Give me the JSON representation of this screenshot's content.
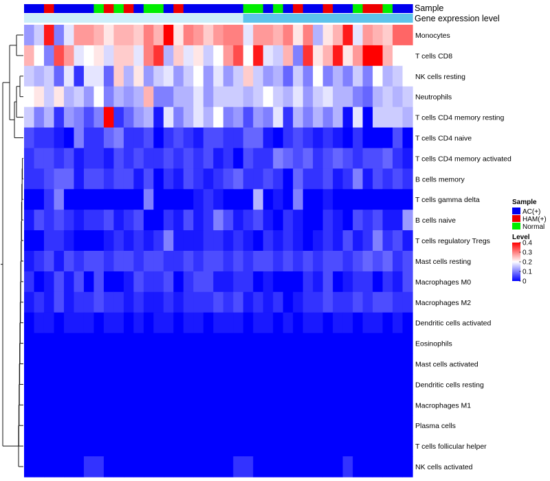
{
  "chart_data": {
    "type": "heatmap",
    "title": "",
    "annotations": [
      {
        "name": "Sample"
      },
      {
        "name": "Gene expression level"
      }
    ],
    "sample_groups": [
      "AC(+)",
      "AC(+)",
      "HAM(+)",
      "AC(+)",
      "AC(+)",
      "AC(+)",
      "AC(+)",
      "Normal",
      "HAM(+)",
      "Normal",
      "HAM(+)",
      "AC(+)",
      "Normal",
      "Normal",
      "AC(+)",
      "HAM(+)",
      "AC(+)",
      "AC(+)",
      "AC(+)",
      "AC(+)",
      "AC(+)",
      "AC(+)",
      "Normal",
      "Normal",
      "AC(+)",
      "Normal",
      "AC(+)",
      "HAM(+)",
      "AC(+)",
      "AC(+)",
      "HAM(+)",
      "AC(+)",
      "AC(+)",
      "Normal",
      "HAM(+)",
      "HAM(+)",
      "Normal",
      "AC(+)",
      "AC(+)"
    ],
    "expression_level": [
      "light",
      "light",
      "light",
      "light",
      "light",
      "light",
      "light",
      "light",
      "light",
      "light",
      "light",
      "light",
      "light",
      "light",
      "light",
      "light",
      "light",
      "light",
      "light",
      "light",
      "light",
      "light",
      "mid",
      "mid",
      "mid",
      "mid",
      "mid",
      "mid",
      "mid",
      "mid",
      "mid",
      "mid",
      "mid",
      "mid",
      "mid",
      "mid",
      "mid",
      "mid",
      "mid"
    ],
    "rows": [
      "Monocytes",
      "T cells CD8",
      "NK cells resting",
      "Neutrophils",
      "T cells CD4 memory resting",
      "T cells CD4 naive",
      "T cells CD4 memory activated",
      "B cells memory",
      "T cells gamma delta",
      "B cells naive",
      "T cells regulatory  Tregs",
      "Mast cells resting",
      "Macrophages M0",
      "Macrophages M2",
      "Dendritic cells activated",
      "Eosinophils",
      "Mast cells activated",
      "Dendritic cells resting",
      "Macrophages M1",
      "Plasma cells",
      "T cells follicular helper",
      "NK cells activated"
    ],
    "n_columns": 39,
    "values": [
      [
        0.12,
        0.16,
        0.38,
        0.1,
        0.18,
        0.28,
        0.28,
        0.26,
        0.22,
        0.26,
        0.26,
        0.24,
        0.3,
        0.26,
        0.4,
        0.22,
        0.3,
        0.28,
        0.24,
        0.28,
        0.3,
        0.3,
        0.18,
        0.28,
        0.28,
        0.26,
        0.3,
        0.22,
        0.3,
        0.14,
        0.22,
        0.26,
        0.38,
        0.18,
        0.28,
        0.26,
        0.24,
        0.32,
        0.32
      ],
      [
        0.26,
        0.2,
        0.1,
        0.34,
        0.28,
        0.18,
        0.2,
        0.22,
        0.17,
        0.24,
        0.24,
        0.18,
        0.3,
        0.36,
        0.14,
        0.24,
        0.18,
        0.22,
        0.16,
        0.2,
        0.28,
        0.34,
        0.2,
        0.38,
        0.18,
        0.16,
        0.26,
        0.1,
        0.36,
        0.22,
        0.26,
        0.38,
        0.22,
        0.28,
        0.4,
        0.4,
        0.26,
        0.2,
        0.2
      ],
      [
        0.16,
        0.14,
        0.16,
        0.08,
        0.18,
        0.04,
        0.18,
        0.18,
        0.08,
        0.24,
        0.14,
        0.22,
        0.12,
        0.16,
        0.18,
        0.12,
        0.16,
        0.2,
        0.12,
        0.18,
        0.12,
        0.16,
        0.24,
        0.16,
        0.12,
        0.14,
        0.08,
        0.16,
        0.1,
        0.2,
        0.1,
        0.14,
        0.1,
        0.16,
        0.1,
        0.2,
        0.14,
        0.16,
        0.2
      ],
      [
        0.2,
        0.22,
        0.16,
        0.22,
        0.14,
        0.16,
        0.12,
        0.2,
        0.1,
        0.14,
        0.12,
        0.14,
        0.26,
        0.1,
        0.1,
        0.14,
        0.14,
        0.18,
        0.12,
        0.16,
        0.16,
        0.16,
        0.14,
        0.16,
        0.2,
        0.16,
        0.14,
        0.18,
        0.12,
        0.16,
        0.18,
        0.14,
        0.14,
        0.1,
        0.08,
        0.14,
        0.16,
        0.14,
        0.16
      ],
      [
        0.16,
        0.1,
        0.14,
        0.04,
        0.12,
        0.1,
        0.06,
        0.1,
        0.4,
        0.04,
        0.08,
        0.12,
        0.14,
        0.02,
        0.18,
        0.1,
        0.14,
        0.18,
        0.14,
        0.2,
        0.1,
        0.12,
        0.06,
        0.12,
        0.1,
        0.18,
        0.04,
        0.14,
        0.1,
        0.14,
        0.1,
        0.14,
        0.01,
        0.18,
        0.0,
        0.16,
        0.16,
        0.16,
        0.14
      ],
      [
        0.06,
        0.04,
        0.04,
        0.02,
        0.0,
        0.1,
        0.04,
        0.04,
        0.08,
        0.1,
        0.04,
        0.04,
        0.06,
        0.0,
        0.04,
        0.06,
        0.04,
        0.02,
        0.06,
        0.06,
        0.04,
        0.04,
        0.08,
        0.08,
        0.02,
        0.0,
        0.04,
        0.06,
        0.04,
        0.02,
        0.04,
        0.02,
        0.0,
        0.04,
        0.0,
        0.0,
        0.0,
        0.06,
        0.0
      ],
      [
        0.04,
        0.06,
        0.06,
        0.04,
        0.06,
        0.02,
        0.04,
        0.04,
        0.02,
        0.06,
        0.04,
        0.06,
        0.04,
        0.04,
        0.06,
        0.04,
        0.06,
        0.04,
        0.06,
        0.02,
        0.04,
        0.0,
        0.06,
        0.04,
        0.04,
        0.1,
        0.08,
        0.06,
        0.08,
        0.04,
        0.06,
        0.08,
        0.06,
        0.04,
        0.06,
        0.06,
        0.08,
        0.04,
        0.02
      ],
      [
        0.04,
        0.04,
        0.06,
        0.08,
        0.08,
        0.02,
        0.06,
        0.06,
        0.04,
        0.06,
        0.06,
        0.02,
        0.06,
        0.0,
        0.04,
        0.02,
        0.06,
        0.04,
        0.02,
        0.04,
        0.06,
        0.08,
        0.04,
        0.04,
        0.06,
        0.04,
        0.0,
        0.08,
        0.04,
        0.04,
        0.06,
        0.02,
        0.04,
        0.1,
        0.02,
        0.06,
        0.04,
        0.06,
        0.04
      ],
      [
        0.0,
        0.0,
        0.04,
        0.1,
        0.0,
        0.0,
        0.0,
        0.0,
        0.0,
        0.0,
        0.0,
        0.0,
        0.1,
        0.0,
        0.0,
        0.0,
        0.0,
        0.02,
        0.04,
        0.02,
        0.0,
        0.0,
        0.0,
        0.14,
        0.0,
        0.02,
        0.0,
        0.1,
        0.0,
        0.0,
        0.02,
        0.0,
        0.0,
        0.0,
        0.0,
        0.0,
        0.0,
        0.0,
        0.0
      ],
      [
        0.02,
        0.06,
        0.04,
        0.06,
        0.04,
        0.02,
        0.04,
        0.04,
        0.06,
        0.02,
        0.04,
        0.06,
        0.0,
        0.0,
        0.04,
        0.02,
        0.06,
        0.02,
        0.04,
        0.1,
        0.06,
        0.02,
        0.04,
        0.06,
        0.02,
        0.0,
        0.04,
        0.02,
        0.0,
        0.0,
        0.04,
        0.02,
        0.0,
        0.06,
        0.04,
        0.06,
        0.02,
        0.02,
        0.12
      ],
      [
        0.0,
        0.0,
        0.04,
        0.04,
        0.02,
        0.0,
        0.0,
        0.0,
        0.02,
        0.04,
        0.02,
        0.04,
        0.02,
        0.04,
        0.1,
        0.02,
        0.02,
        0.02,
        0.04,
        0.04,
        0.02,
        0.04,
        0.02,
        0.0,
        0.04,
        0.02,
        0.04,
        0.02,
        0.0,
        0.02,
        0.04,
        0.02,
        0.06,
        0.02,
        0.04,
        0.1,
        0.04,
        0.06,
        0.02
      ],
      [
        0.02,
        0.04,
        0.06,
        0.02,
        0.06,
        0.04,
        0.06,
        0.06,
        0.04,
        0.06,
        0.06,
        0.04,
        0.06,
        0.06,
        0.04,
        0.04,
        0.06,
        0.04,
        0.06,
        0.06,
        0.04,
        0.06,
        0.04,
        0.06,
        0.06,
        0.04,
        0.06,
        0.04,
        0.06,
        0.04,
        0.06,
        0.06,
        0.04,
        0.06,
        0.08,
        0.06,
        0.08,
        0.04,
        0.06
      ],
      [
        0.04,
        0.0,
        0.02,
        0.06,
        0.02,
        0.06,
        0.0,
        0.06,
        0.0,
        0.0,
        0.02,
        0.06,
        0.04,
        0.04,
        0.06,
        0.0,
        0.04,
        0.06,
        0.06,
        0.02,
        0.02,
        0.04,
        0.04,
        0.0,
        0.02,
        0.0,
        0.0,
        0.0,
        0.04,
        0.02,
        0.06,
        0.0,
        0.02,
        0.04,
        0.04,
        0.0,
        0.04,
        0.02,
        0.06
      ],
      [
        0.02,
        0.04,
        0.02,
        0.06,
        0.02,
        0.04,
        0.04,
        0.06,
        0.04,
        0.04,
        0.02,
        0.04,
        0.02,
        0.02,
        0.04,
        0.02,
        0.04,
        0.04,
        0.04,
        0.06,
        0.04,
        0.06,
        0.02,
        0.04,
        0.02,
        0.04,
        0.0,
        0.02,
        0.04,
        0.04,
        0.06,
        0.04,
        0.04,
        0.06,
        0.04,
        0.06,
        0.06,
        0.04,
        0.04
      ],
      [
        0.0,
        0.02,
        0.02,
        0.0,
        0.02,
        0.02,
        0.02,
        0.0,
        0.02,
        0.02,
        0.0,
        0.02,
        0.0,
        0.02,
        0.02,
        0.0,
        0.02,
        0.02,
        0.0,
        0.02,
        0.02,
        0.02,
        0.0,
        0.02,
        0.02,
        0.0,
        0.02,
        0.0,
        0.02,
        0.02,
        0.0,
        0.02,
        0.02,
        0.0,
        0.02,
        0.02,
        0.0,
        0.02,
        0.0
      ],
      [
        0,
        0,
        0,
        0,
        0,
        0,
        0,
        0,
        0,
        0,
        0,
        0,
        0,
        0,
        0,
        0,
        0,
        0,
        0,
        0,
        0,
        0,
        0,
        0,
        0,
        0,
        0,
        0,
        0,
        0,
        0,
        0,
        0,
        0,
        0,
        0,
        0,
        0,
        0
      ],
      [
        0,
        0,
        0,
        0,
        0,
        0,
        0,
        0,
        0,
        0,
        0,
        0,
        0,
        0,
        0,
        0,
        0,
        0,
        0,
        0,
        0,
        0,
        0,
        0,
        0,
        0,
        0,
        0,
        0,
        0,
        0,
        0,
        0,
        0,
        0,
        0,
        0,
        0,
        0
      ],
      [
        0,
        0,
        0,
        0,
        0,
        0,
        0,
        0,
        0,
        0,
        0,
        0,
        0,
        0,
        0,
        0,
        0,
        0,
        0,
        0,
        0,
        0,
        0,
        0,
        0,
        0,
        0,
        0,
        0,
        0,
        0,
        0,
        0,
        0,
        0,
        0,
        0,
        0,
        0
      ],
      [
        0,
        0,
        0,
        0,
        0,
        0,
        0,
        0,
        0,
        0,
        0,
        0,
        0,
        0,
        0,
        0,
        0,
        0,
        0,
        0,
        0,
        0,
        0,
        0,
        0,
        0,
        0,
        0,
        0,
        0,
        0,
        0,
        0,
        0,
        0,
        0,
        0,
        0,
        0
      ],
      [
        0,
        0,
        0,
        0,
        0,
        0,
        0,
        0,
        0,
        0,
        0,
        0,
        0,
        0,
        0,
        0,
        0,
        0,
        0,
        0,
        0,
        0,
        0,
        0,
        0,
        0,
        0,
        0,
        0,
        0,
        0,
        0,
        0,
        0,
        0,
        0,
        0,
        0,
        0
      ],
      [
        0,
        0,
        0,
        0,
        0,
        0,
        0,
        0,
        0,
        0,
        0,
        0,
        0,
        0,
        0,
        0,
        0,
        0,
        0,
        0,
        0,
        0,
        0,
        0,
        0,
        0,
        0,
        0,
        0,
        0,
        0,
        0,
        0,
        0,
        0,
        0,
        0,
        0,
        0
      ],
      [
        0,
        0,
        0,
        0,
        0,
        0,
        0.04,
        0.04,
        0,
        0,
        0,
        0,
        0,
        0,
        0,
        0,
        0,
        0,
        0,
        0,
        0,
        0.04,
        0.04,
        0,
        0,
        0,
        0,
        0,
        0,
        0,
        0,
        0,
        0.04,
        0,
        0,
        0,
        0,
        0,
        0
      ]
    ],
    "legend": {
      "sample_title": "Sample",
      "sample_items": [
        {
          "label": "AC(+)",
          "color": "#0000ee"
        },
        {
          "label": "HAM(+)",
          "color": "#ee0000"
        },
        {
          "label": "Normal",
          "color": "#00ee00"
        }
      ],
      "level_title": "Level",
      "level_ticks": [
        0.4,
        0.3,
        0.2,
        0.1,
        0
      ],
      "level_range": [
        0,
        0.4
      ],
      "placement": "right"
    },
    "colors": {
      "low": "#0000ff",
      "mid": "#ffffff",
      "high": "#ff0000",
      "expr_light": "#cdeefa",
      "expr_mid": "#5cc3eb"
    }
  }
}
